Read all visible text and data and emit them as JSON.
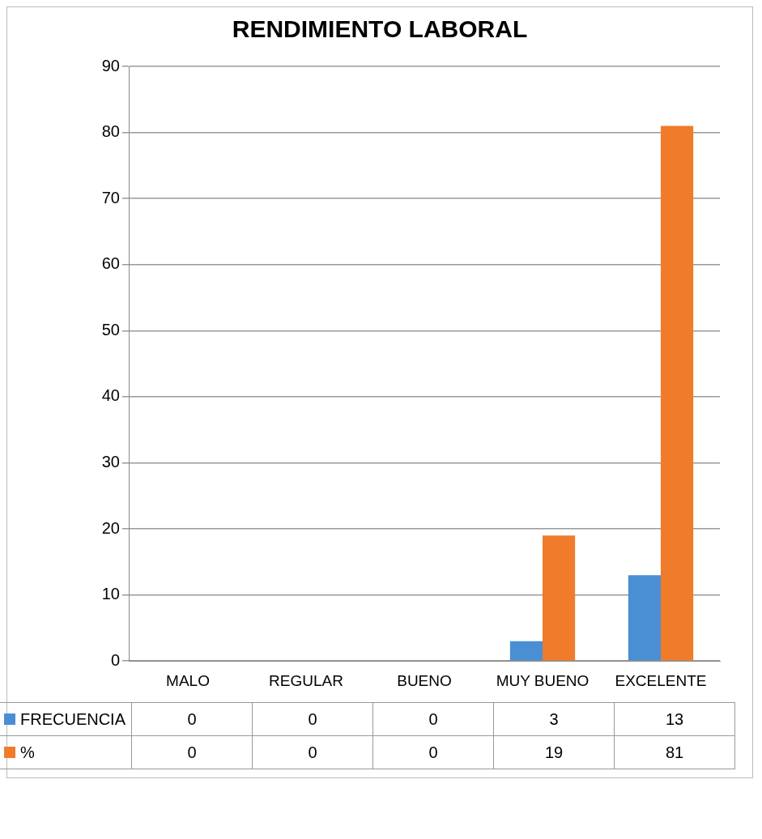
{
  "chart_data": {
    "type": "bar",
    "title": "RENDIMIENTO LABORAL",
    "categories": [
      "MALO",
      "REGULAR",
      "BUENO",
      "MUY BUENO",
      "EXCELENTE"
    ],
    "series": [
      {
        "name": "FRECUENCIA",
        "color": "#4a8fd4",
        "values": [
          0,
          0,
          0,
          3,
          13
        ]
      },
      {
        "name": "%",
        "color": "#f07b2a",
        "values": [
          0,
          0,
          0,
          19,
          81
        ]
      }
    ],
    "ylim": [
      0,
      90
    ],
    "yticks": [
      0,
      10,
      20,
      30,
      40,
      50,
      60,
      70,
      80,
      90
    ],
    "grid": "y",
    "legend": "bottom",
    "data_labels": true
  }
}
